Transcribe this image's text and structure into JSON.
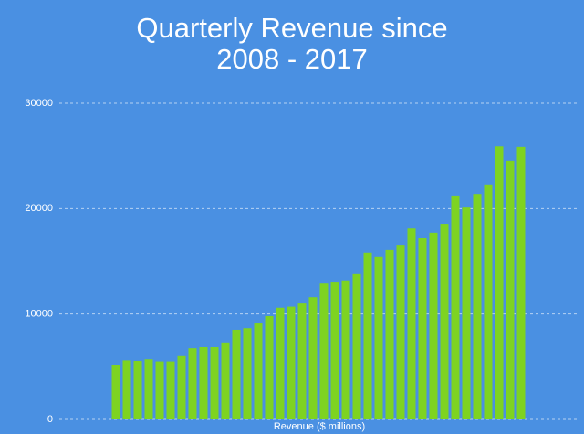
{
  "chart_data": {
    "type": "bar",
    "title": "Quarterly Revenue since\n2008 - 2017",
    "xlabel": "Revenue ($ millions)",
    "categories": [
      null,
      null,
      null,
      null,
      null,
      null,
      null,
      null,
      null,
      null,
      null,
      null,
      null,
      null,
      null,
      null,
      null,
      null,
      null,
      null,
      null,
      null,
      null,
      null,
      null,
      null,
      null,
      null,
      null,
      null,
      null,
      null,
      null,
      null,
      null,
      null,
      null,
      null
    ],
    "values": [
      5200,
      5600,
      5550,
      5700,
      5500,
      5500,
      6000,
      6750,
      6850,
      6850,
      7300,
      8500,
      8650,
      9100,
      9800,
      10600,
      10700,
      11000,
      11600,
      12900,
      13000,
      13200,
      13800,
      15800,
      15450,
      16050,
      16550,
      18100,
      17250,
      17700,
      18550,
      21250,
      20100,
      21400,
      22300,
      25900,
      24550,
      25850
    ],
    "color": "#7ed321",
    "background": "#4a90e2",
    "ylim": [
      0,
      30000
    ],
    "yticks": [
      0,
      10000,
      20000,
      30000
    ],
    "grid": true
  }
}
